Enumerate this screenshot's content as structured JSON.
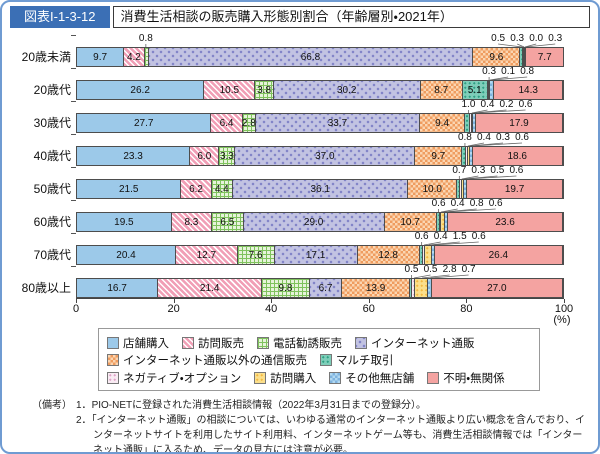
{
  "header": {
    "figure_no": "図表I-1-3-12",
    "title": "消費生活相談の販売購入形態別割合（年齢層別・2021年）"
  },
  "chart_data": {
    "type": "bar",
    "orientation": "horizontal",
    "stacked": true,
    "title": "消費生活相談の販売購入形態別割合（年齢層別・2021年）",
    "categories": [
      "20歳未満",
      "20歳代",
      "30歳代",
      "40歳代",
      "50歳代",
      "60歳代",
      "70歳代",
      "80歳以上"
    ],
    "series": [
      {
        "name": "店舗購入",
        "pattern": "solid",
        "color": "#9cc9e9",
        "pattern_color": "#9cc9e9",
        "small_cluster": false,
        "values": [
          9.7,
          26.2,
          27.7,
          23.3,
          21.5,
          19.5,
          20.4,
          16.7
        ]
      },
      {
        "name": "訪問販売",
        "pattern": "diag",
        "color": "#f19fb6",
        "pattern_color": "#ffffff",
        "small_cluster": false,
        "values": [
          4.2,
          10.5,
          6.4,
          6.0,
          6.2,
          8.3,
          12.7,
          21.4
        ]
      },
      {
        "name": "電話勧誘販売",
        "pattern": "grid",
        "color": "#e6f3da",
        "pattern_color": "#7fc25d",
        "small_cluster": false,
        "values": [
          0.8,
          3.8,
          2.8,
          3.3,
          4.4,
          6.5,
          7.6,
          9.8
        ]
      },
      {
        "name": "インターネット通販",
        "pattern": "dots-lg",
        "color": "#c2c3e2",
        "pattern_color": "#8385c8",
        "small_cluster": false,
        "values": [
          66.8,
          30.2,
          33.7,
          37.0,
          36.1,
          29.0,
          17.1,
          6.7
        ]
      },
      {
        "name": "インターネット通販以外の通信販売",
        "pattern": "checker",
        "color": "#fbd6b2",
        "pattern_color": "#ef9c5f",
        "small_cluster": false,
        "values": [
          9.6,
          8.7,
          9.4,
          9.7,
          10.0,
          10.7,
          12.8,
          13.9
        ]
      },
      {
        "name": "マルチ取引",
        "pattern": "dots",
        "color": "#7eceb9",
        "pattern_color": "#2fa083",
        "small_cluster": true,
        "values": [
          0.5,
          5.1,
          1.0,
          0.8,
          0.7,
          0.6,
          0.6,
          0.5
        ]
      },
      {
        "name": "ネガティブ・オプション",
        "pattern": "dots",
        "color": "#f9ebf3",
        "pattern_color": "#dfa3c8",
        "small_cluster": true,
        "values": [
          0.3,
          0.3,
          0.4,
          0.4,
          0.3,
          0.4,
          0.4,
          0.5
        ]
      },
      {
        "name": "訪問購入",
        "pattern": "dots",
        "color": "#fbdf8c",
        "pattern_color": "#f3b941",
        "small_cluster": true,
        "values": [
          0.0,
          0.1,
          0.2,
          0.3,
          0.5,
          0.8,
          1.5,
          2.8
        ]
      },
      {
        "name": "その他無店舗",
        "pattern": "checker",
        "color": "#b2d9f1",
        "pattern_color": "#7fb3df",
        "small_cluster": true,
        "values": [
          0.3,
          0.8,
          0.6,
          0.6,
          0.6,
          0.6,
          0.6,
          0.7
        ]
      },
      {
        "name": "不明・無関係",
        "pattern": "solid",
        "color": "#f4a3a1",
        "pattern_color": "#f4a3a1",
        "small_cluster": false,
        "values": [
          7.7,
          14.3,
          17.9,
          18.6,
          19.7,
          23.6,
          26.4,
          27.0
        ]
      }
    ],
    "xlim": [
      0,
      100
    ],
    "xticks": [
      0,
      20,
      40,
      60,
      80,
      100
    ],
    "x_unit": "(%)",
    "grid": false,
    "legend_position": "bottom",
    "legend_rows": [
      [
        0,
        1,
        2,
        3
      ],
      [
        4,
        5
      ],
      [
        6,
        7,
        8,
        9
      ]
    ],
    "value_labels": "percent-one-decimal"
  },
  "notes": {
    "label": "（備考）",
    "items": [
      {
        "no": "1．",
        "text": "PIO-NETに登録された消費生活相談情報（2022年3月31日までの登録分）。"
      },
      {
        "no": "2．",
        "text": "「インターネット通販」の相談については、いわゆる通常のインターネット通販より広い概念を含んでおり、インターネットサイトを利用したサイト利用料、インターネットゲーム等も、消費生活相談情報では「インターネット通販」に入るため、データの見方には注意が必要。"
      }
    ]
  }
}
